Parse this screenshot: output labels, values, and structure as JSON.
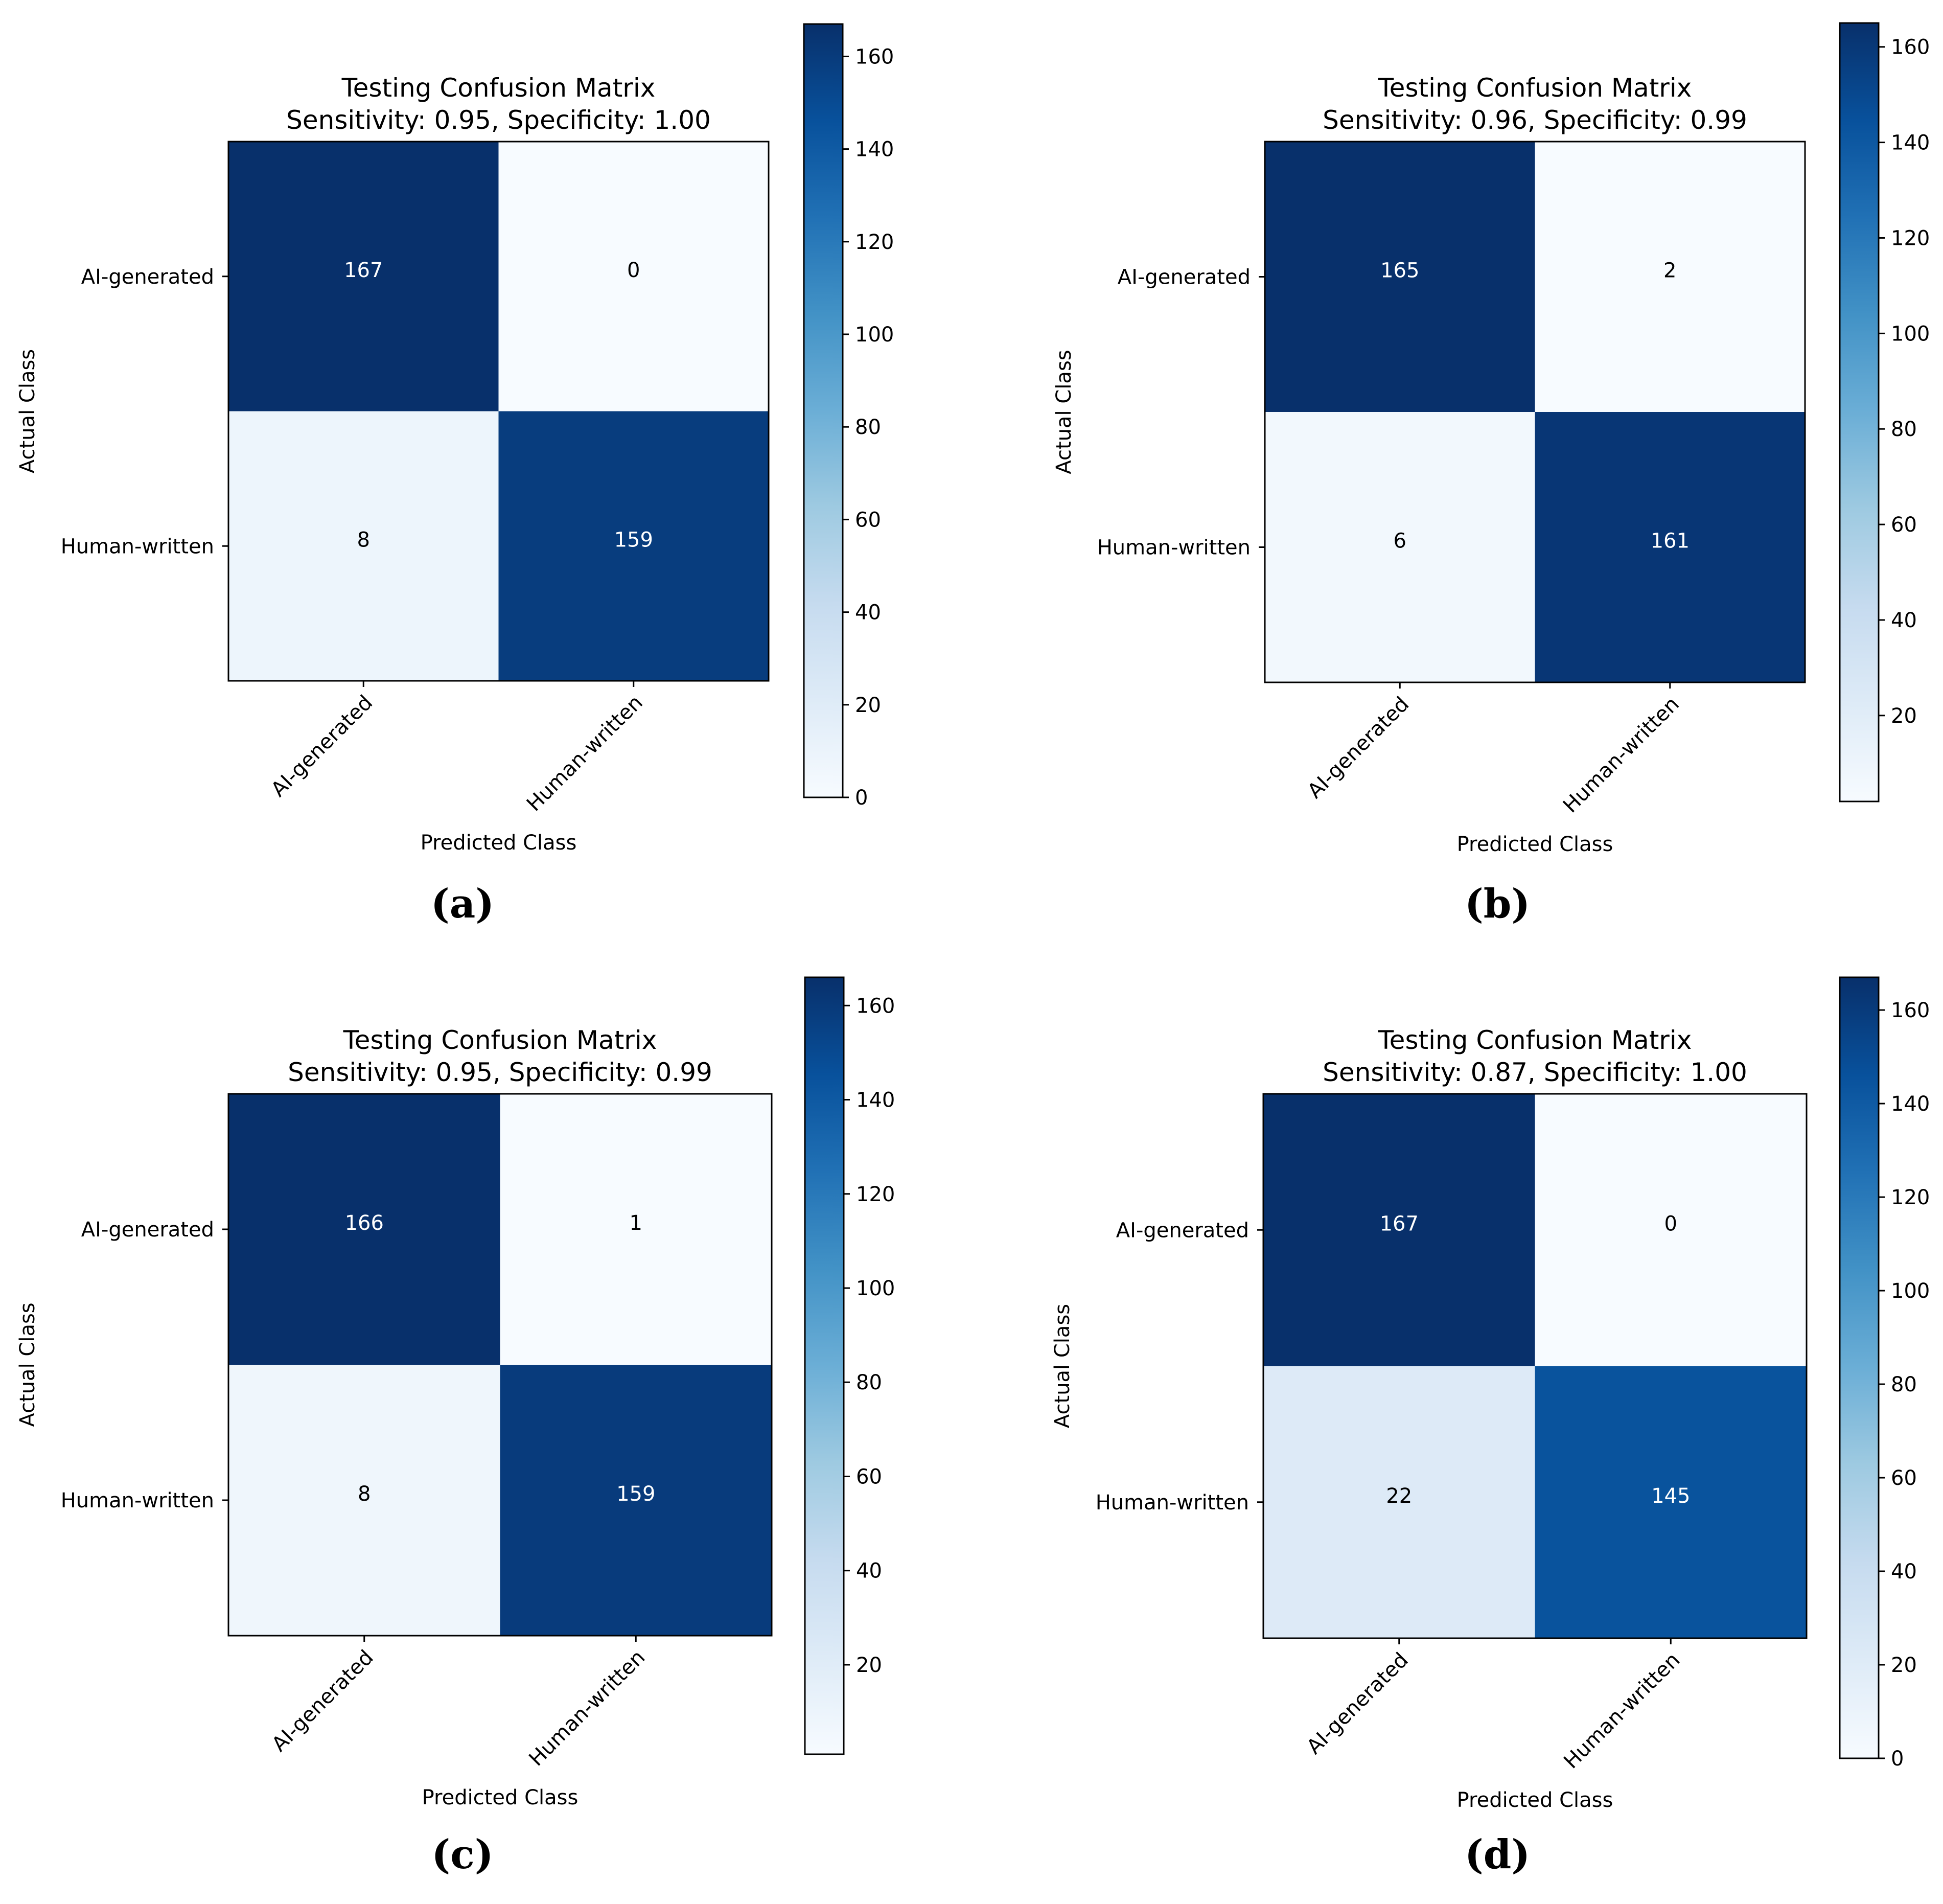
{
  "chart_data": [
    {
      "type": "heatmap",
      "panel_label": "(a)",
      "title": "Testing Confusion Matrix",
      "subtitle": "Sensitivity: 0.95, Specificity: 1.00",
      "xlabel": "Predicted Class",
      "ylabel": "Actual Class",
      "x_categories": [
        "AI-generated",
        "Human-written"
      ],
      "y_categories": [
        "AI-generated",
        "Human-written"
      ],
      "matrix": [
        [
          167,
          0
        ],
        [
          8,
          159
        ]
      ],
      "cell_labels": [
        [
          "167",
          "0"
        ],
        [
          "8",
          "159"
        ]
      ],
      "colormap": "Blues",
      "colorbar": {
        "range": [
          0,
          167
        ],
        "ticks": [
          0,
          20,
          40,
          60,
          80,
          100,
          120,
          140,
          160
        ]
      }
    },
    {
      "type": "heatmap",
      "panel_label": "(b)",
      "title": "Testing Confusion Matrix",
      "subtitle": "Sensitivity: 0.96, Specificity: 0.99",
      "xlabel": "Predicted Class",
      "ylabel": "Actual Class",
      "x_categories": [
        "AI-generated",
        "Human-written"
      ],
      "y_categories": [
        "AI-generated",
        "Human-written"
      ],
      "matrix": [
        [
          165,
          2
        ],
        [
          6,
          161
        ]
      ],
      "cell_labels": [
        [
          "165",
          "2"
        ],
        [
          "6",
          "161"
        ]
      ],
      "colormap": "Blues",
      "colorbar": {
        "range": [
          2,
          165
        ],
        "ticks": [
          20,
          40,
          60,
          80,
          100,
          120,
          140,
          160
        ]
      }
    },
    {
      "type": "heatmap",
      "panel_label": "(c)",
      "title": "Testing Confusion Matrix",
      "subtitle": "Sensitivity: 0.95, Specificity: 0.99",
      "xlabel": "Predicted Class",
      "ylabel": "Actual Class",
      "x_categories": [
        "AI-generated",
        "Human-written"
      ],
      "y_categories": [
        "AI-generated",
        "Human-written"
      ],
      "matrix": [
        [
          166,
          1
        ],
        [
          8,
          159
        ]
      ],
      "cell_labels": [
        [
          "166",
          "1"
        ],
        [
          "8",
          "159"
        ]
      ],
      "colormap": "Blues",
      "colorbar": {
        "range": [
          1,
          166
        ],
        "ticks": [
          20,
          40,
          60,
          80,
          100,
          120,
          140,
          160
        ]
      }
    },
    {
      "type": "heatmap",
      "panel_label": "(d)",
      "title": "Testing Confusion Matrix",
      "subtitle": "Sensitivity: 0.87, Specificity: 1.00",
      "xlabel": "Predicted Class",
      "ylabel": "Actual Class",
      "x_categories": [
        "AI-generated",
        "Human-written"
      ],
      "y_categories": [
        "AI-generated",
        "Human-written"
      ],
      "matrix": [
        [
          167,
          0
        ],
        [
          22,
          145
        ]
      ],
      "cell_labels": [
        [
          "167",
          "0"
        ],
        [
          "22",
          "145"
        ]
      ],
      "colormap": "Blues",
      "colorbar": {
        "range": [
          0,
          167
        ],
        "ticks": [
          0,
          20,
          40,
          60,
          80,
          100,
          120,
          140,
          160
        ]
      }
    }
  ]
}
